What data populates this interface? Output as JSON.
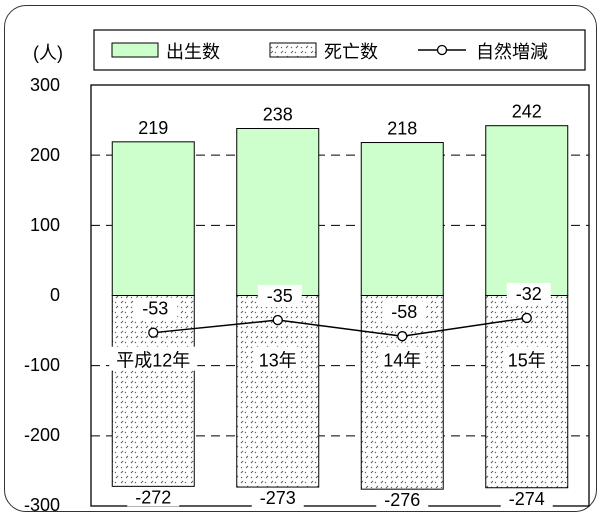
{
  "chart_data": {
    "type": "bar",
    "unit_label": "(人)",
    "categories": [
      "平成12年",
      "13年",
      "14年",
      "15年"
    ],
    "series": [
      {
        "name": "出生数",
        "values": [
          219,
          238,
          218,
          242
        ],
        "color": "#ccffcc"
      },
      {
        "name": "死亡数",
        "values": [
          -272,
          -273,
          -276,
          -274
        ],
        "pattern": "dotted-hatch"
      },
      {
        "name": "自然増減",
        "type": "line",
        "values": [
          -53,
          -35,
          -58,
          -32
        ],
        "color": "#000000"
      }
    ],
    "y_ticks": [
      "300",
      "200",
      "100",
      "0",
      "-100",
      "-200",
      "-300"
    ],
    "ylim": [
      -300,
      300
    ],
    "grid": "dashed-horizontal",
    "legend": "top"
  }
}
